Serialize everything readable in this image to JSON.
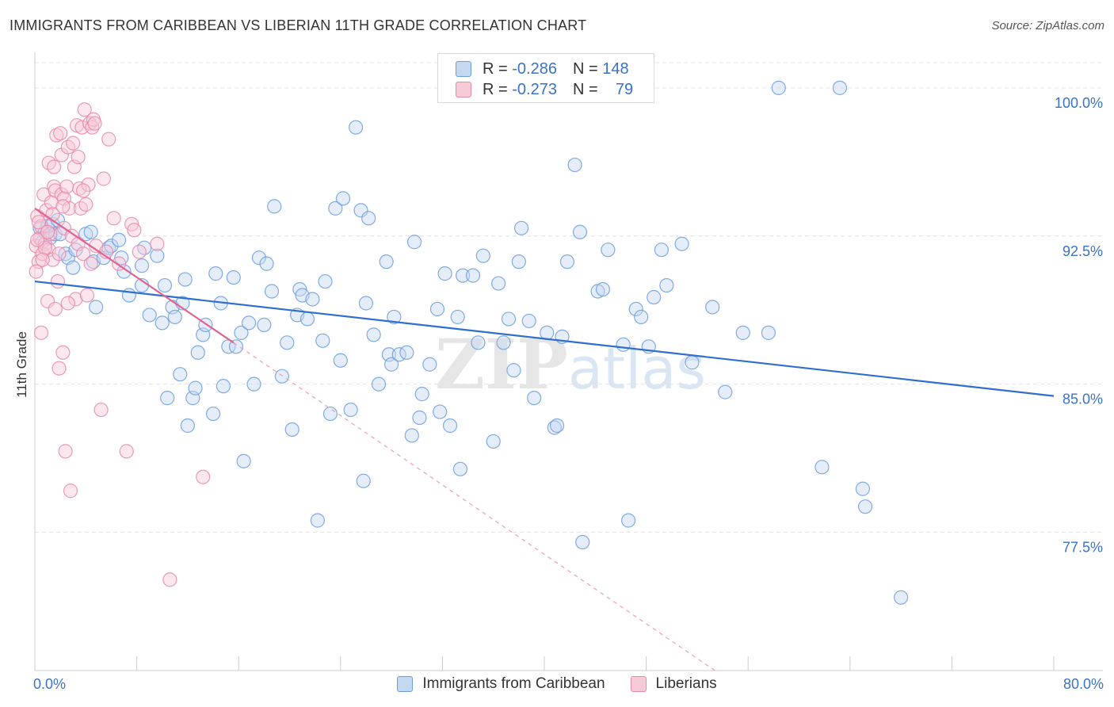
{
  "chart_data": {
    "type": "scatter",
    "title": "IMMIGRANTS FROM CARIBBEAN VS LIBERIAN 11TH GRADE CORRELATION CHART",
    "source": "Source: ZipAtlas.com",
    "xlabel": "",
    "ylabel": "11th Grade",
    "xlim": [
      0,
      80
    ],
    "ylim": [
      70.5,
      101.8
    ],
    "x_tick_labels": {
      "left": "0.0%",
      "right": "80.0%"
    },
    "y_ticks": [
      {
        "value": 100.0,
        "label": "100.0%"
      },
      {
        "value": 92.5,
        "label": "92.5%"
      },
      {
        "value": 85.0,
        "label": "85.0%"
      },
      {
        "value": 77.5,
        "label": "77.5%"
      }
    ],
    "grid": true,
    "legend_position": "top-center",
    "watermark": "ZIPatlas",
    "stats": [
      {
        "series": "Immigrants from Caribbean",
        "r_label": "R =",
        "r_value": "-0.286",
        "n_label": "N =",
        "n_value": "148"
      },
      {
        "series": "Liberians",
        "r_label": "R =",
        "r_value": "-0.273",
        "n_label": "N =",
        "n_value": "79"
      }
    ],
    "series": [
      {
        "name": "Immigrants from Caribbean",
        "color": "#6b9ee0",
        "fill": "#c5d8f2",
        "trend": {
          "x0": 0,
          "y0": 90.2,
          "x1": 80,
          "y1": 84.4
        },
        "points": [
          [
            0.4,
            92.9
          ],
          [
            0.6,
            92.2
          ],
          [
            0.8,
            92.7
          ],
          [
            1.0,
            93.0
          ],
          [
            1.2,
            92.4
          ],
          [
            1.4,
            93.1
          ],
          [
            1.6,
            92.6
          ],
          [
            1.8,
            93.3
          ],
          [
            2.0,
            92.6
          ],
          [
            2.4,
            91.6
          ],
          [
            2.6,
            91.4
          ],
          [
            3.0,
            90.9
          ],
          [
            3.2,
            91.8
          ],
          [
            4.0,
            92.6
          ],
          [
            4.4,
            92.7
          ],
          [
            4.6,
            91.2
          ],
          [
            4.8,
            88.9
          ],
          [
            5.4,
            91.4
          ],
          [
            5.8,
            91.9
          ],
          [
            6.0,
            92.0
          ],
          [
            6.6,
            92.3
          ],
          [
            6.8,
            91.4
          ],
          [
            7.0,
            90.7
          ],
          [
            7.4,
            89.5
          ],
          [
            8.4,
            91.0
          ],
          [
            8.4,
            90.0
          ],
          [
            8.6,
            91.9
          ],
          [
            9.0,
            88.5
          ],
          [
            9.6,
            91.5
          ],
          [
            10.0,
            88.1
          ],
          [
            10.2,
            90.0
          ],
          [
            10.4,
            84.3
          ],
          [
            10.8,
            88.9
          ],
          [
            11.0,
            88.4
          ],
          [
            11.4,
            85.5
          ],
          [
            11.6,
            89.1
          ],
          [
            11.8,
            90.3
          ],
          [
            12.0,
            82.9
          ],
          [
            12.4,
            84.3
          ],
          [
            12.6,
            84.8
          ],
          [
            12.8,
            86.6
          ],
          [
            13.2,
            87.5
          ],
          [
            13.4,
            88.0
          ],
          [
            14.0,
            83.5
          ],
          [
            14.2,
            90.6
          ],
          [
            14.6,
            89.1
          ],
          [
            14.8,
            84.9
          ],
          [
            15.2,
            86.9
          ],
          [
            15.6,
            90.4
          ],
          [
            15.8,
            86.9
          ],
          [
            16.2,
            87.6
          ],
          [
            16.4,
            81.1
          ],
          [
            16.8,
            88.1
          ],
          [
            17.2,
            85.0
          ],
          [
            17.6,
            91.4
          ],
          [
            18.0,
            88.0
          ],
          [
            18.2,
            91.1
          ],
          [
            18.6,
            89.7
          ],
          [
            18.8,
            94.0
          ],
          [
            19.4,
            85.4
          ],
          [
            19.8,
            87.1
          ],
          [
            20.2,
            82.7
          ],
          [
            20.6,
            88.5
          ],
          [
            20.8,
            89.8
          ],
          [
            21.0,
            89.5
          ],
          [
            21.4,
            88.3
          ],
          [
            21.8,
            89.3
          ],
          [
            22.2,
            78.1
          ],
          [
            22.6,
            87.2
          ],
          [
            22.8,
            90.2
          ],
          [
            23.2,
            83.5
          ],
          [
            23.6,
            93.9
          ],
          [
            24.0,
            86.2
          ],
          [
            24.2,
            94.4
          ],
          [
            24.8,
            83.7
          ],
          [
            25.2,
            98.0
          ],
          [
            25.6,
            93.8
          ],
          [
            25.8,
            80.1
          ],
          [
            26.0,
            89.1
          ],
          [
            26.2,
            93.4
          ],
          [
            26.6,
            87.5
          ],
          [
            27.0,
            85.0
          ],
          [
            27.6,
            91.2
          ],
          [
            27.8,
            86.5
          ],
          [
            28.0,
            86.0
          ],
          [
            28.2,
            88.4
          ],
          [
            28.6,
            86.5
          ],
          [
            29.2,
            86.6
          ],
          [
            29.6,
            82.4
          ],
          [
            29.8,
            92.2
          ],
          [
            30.2,
            83.3
          ],
          [
            30.4,
            84.5
          ],
          [
            31.0,
            86.0
          ],
          [
            31.6,
            88.8
          ],
          [
            31.8,
            83.6
          ],
          [
            32.2,
            90.6
          ],
          [
            32.6,
            82.9
          ],
          [
            33.2,
            88.4
          ],
          [
            33.4,
            80.7
          ],
          [
            33.6,
            90.5
          ],
          [
            34.4,
            90.5
          ],
          [
            34.8,
            87.1
          ],
          [
            35.2,
            91.5
          ],
          [
            36.0,
            82.1
          ],
          [
            36.4,
            90.1
          ],
          [
            36.8,
            87.1
          ],
          [
            37.2,
            88.3
          ],
          [
            37.6,
            85.7
          ],
          [
            38.0,
            91.2
          ],
          [
            38.2,
            92.9
          ],
          [
            38.8,
            88.2
          ],
          [
            39.2,
            84.3
          ],
          [
            40.2,
            87.6
          ],
          [
            40.8,
            82.8
          ],
          [
            41.0,
            82.9
          ],
          [
            41.4,
            87.4
          ],
          [
            41.8,
            91.2
          ],
          [
            42.4,
            96.1
          ],
          [
            42.8,
            92.7
          ],
          [
            43.0,
            77.0
          ],
          [
            44.2,
            89.7
          ],
          [
            44.6,
            89.8
          ],
          [
            45.0,
            91.8
          ],
          [
            46.2,
            87.0
          ],
          [
            46.6,
            78.1
          ],
          [
            47.2,
            88.8
          ],
          [
            47.6,
            88.4
          ],
          [
            48.2,
            86.9
          ],
          [
            48.6,
            89.4
          ],
          [
            49.2,
            91.8
          ],
          [
            49.6,
            90.0
          ],
          [
            50.8,
            92.1
          ],
          [
            51.6,
            86.1
          ],
          [
            53.2,
            88.9
          ],
          [
            54.2,
            84.6
          ],
          [
            55.6,
            87.6
          ],
          [
            57.6,
            87.6
          ],
          [
            58.4,
            100.0
          ],
          [
            61.8,
            80.8
          ],
          [
            63.2,
            100.0
          ],
          [
            65.0,
            79.7
          ],
          [
            65.2,
            78.8
          ],
          [
            68.0,
            74.2
          ]
        ]
      },
      {
        "name": "Liberians",
        "color": "#e88aab",
        "fill": "#f7cad8",
        "trend": {
          "x0": 0,
          "y0": 93.9,
          "x1": 15.6,
          "y1": 87.1
        },
        "trend_ext": {
          "x0": 15.6,
          "y0": 87.1,
          "x1": 53.4,
          "y1": 70.5
        },
        "points": [
          [
            0.1,
            92.0
          ],
          [
            0.2,
            93.5
          ],
          [
            0.3,
            91.2
          ],
          [
            0.4,
            92.4
          ],
          [
            0.5,
            93.0
          ],
          [
            0.6,
            91.6
          ],
          [
            0.7,
            94.6
          ],
          [
            0.8,
            92.1
          ],
          [
            0.9,
            93.8
          ],
          [
            1.0,
            89.2
          ],
          [
            1.1,
            91.8
          ],
          [
            1.1,
            96.2
          ],
          [
            1.2,
            92.6
          ],
          [
            1.3,
            94.2
          ],
          [
            1.4,
            91.3
          ],
          [
            1.5,
            95.0
          ],
          [
            1.6,
            88.8
          ],
          [
            1.6,
            94.8
          ],
          [
            1.7,
            97.6
          ],
          [
            1.8,
            90.2
          ],
          [
            1.9,
            91.6
          ],
          [
            2.0,
            97.7
          ],
          [
            2.1,
            94.6
          ],
          [
            2.1,
            96.6
          ],
          [
            2.2,
            86.6
          ],
          [
            2.3,
            94.4
          ],
          [
            2.3,
            92.9
          ],
          [
            2.4,
            81.6
          ],
          [
            2.5,
            95.0
          ],
          [
            2.6,
            97.0
          ],
          [
            2.7,
            93.9
          ],
          [
            2.8,
            79.6
          ],
          [
            2.9,
            92.5
          ],
          [
            3.0,
            97.2
          ],
          [
            3.1,
            96.0
          ],
          [
            3.2,
            89.3
          ],
          [
            3.3,
            98.1
          ],
          [
            3.4,
            92.1
          ],
          [
            3.4,
            96.5
          ],
          [
            3.5,
            94.9
          ],
          [
            3.6,
            93.9
          ],
          [
            3.7,
            98.0
          ],
          [
            3.8,
            91.6
          ],
          [
            3.9,
            98.9
          ],
          [
            4.0,
            94.1
          ],
          [
            4.1,
            89.5
          ],
          [
            4.2,
            95.1
          ],
          [
            4.3,
            98.2
          ],
          [
            4.4,
            91.1
          ],
          [
            4.5,
            98.0
          ],
          [
            4.6,
            98.4
          ],
          [
            4.7,
            98.2
          ],
          [
            4.8,
            92.0
          ],
          [
            5.2,
            83.7
          ],
          [
            5.4,
            95.4
          ],
          [
            5.6,
            91.7
          ],
          [
            5.8,
            97.4
          ],
          [
            6.2,
            93.4
          ],
          [
            6.6,
            91.1
          ],
          [
            7.2,
            81.6
          ],
          [
            7.6,
            93.1
          ],
          [
            7.8,
            92.8
          ],
          [
            8.2,
            91.7
          ],
          [
            9.6,
            92.1
          ],
          [
            10.6,
            75.1
          ],
          [
            13.2,
            80.3
          ],
          [
            0.3,
            93.2
          ],
          [
            0.8,
            91.9
          ],
          [
            1.4,
            93.6
          ],
          [
            0.5,
            87.6
          ],
          [
            1.9,
            85.8
          ],
          [
            2.6,
            89.1
          ],
          [
            0.2,
            92.3
          ],
          [
            0.6,
            91.3
          ],
          [
            1.0,
            92.7
          ],
          [
            1.5,
            96.0
          ],
          [
            2.2,
            94.0
          ],
          [
            3.8,
            94.8
          ],
          [
            0.1,
            90.7
          ]
        ]
      }
    ]
  }
}
